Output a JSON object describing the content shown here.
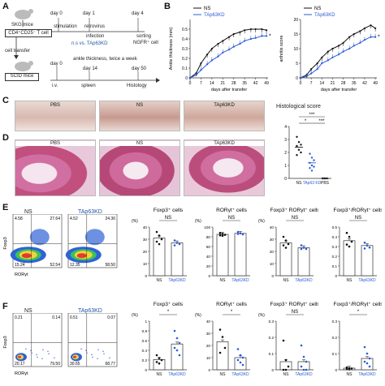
{
  "panelA": {
    "letter": "A",
    "mice": "SKG mice",
    "cells": "CD4⁺CD25⁻ T cell",
    "transfer": "cell transfer",
    "scid": "SCID mice",
    "day0": "day 0",
    "day1": "day 1",
    "day4": "day 4",
    "stimulation": "stimulation",
    "retro": "retrovirus",
    "infection": "infection",
    "nsvs": "n.s vs. TAp63KD",
    "sorting": "sorting",
    "ngfr": "NGFR⁺ cell",
    "ankle": "ankle thickness, twice a week",
    "bday0": "day 0",
    "bday14": "day 14",
    "bday50": "day 50",
    "iv": "i.v.",
    "spleen": "spleen",
    "histology": "Histology"
  },
  "panelB": {
    "letter": "B",
    "legendNS": "NS",
    "legendKD": "TAp63KD",
    "xlabel": "days after transfer",
    "ylabel1": "Ankle thickness (mm)",
    "ylabel2": "arthritis score",
    "star": "*"
  },
  "panelC": {
    "letter": "C",
    "labels": [
      "PBS",
      "NS",
      "TAp63KD"
    ],
    "histTitle": "Histological score"
  },
  "panelD": {
    "letter": "D",
    "labels": [
      "PBS",
      "NS",
      "TAp63KD"
    ],
    "xcats": [
      "NS",
      "TAp63 KD",
      "PBS"
    ],
    "sig": [
      "***",
      "*",
      "***"
    ]
  },
  "panelE": {
    "letter": "E",
    "flowNS": "NS",
    "flowKD": "TAp63KD",
    "yaxis": "Foxp3",
    "xaxis": "RORγt",
    "quadNS": [
      "4.58",
      "27.64",
      "15.24",
      "52.54"
    ],
    "quadKD": [
      "4.52",
      "24.36",
      "12.35",
      "58.50"
    ],
    "titles": [
      "Foxp3⁺ cells",
      "RORγt⁺ cells",
      "Foxp3⁺ RORγt⁺ cells",
      "Foxp3⁺/RORγt⁺ cells"
    ],
    "sig": [
      "NS",
      "NS",
      "NS",
      "NS"
    ],
    "xcats": [
      "NS",
      "TAp63KD"
    ],
    "unit": "(%)"
  },
  "panelF": {
    "letter": "F",
    "flowNS": "NS",
    "flowKD": "TAp63KD",
    "yaxis": "Foxp3",
    "xaxis": "RORγt",
    "quadNS": [
      "0.21",
      "0.14",
      "20.17",
      "79.50"
    ],
    "quadKD": [
      "0.51",
      "0.07",
      "30.65",
      "68.77"
    ],
    "titles": [
      "Foxp3⁺ cells",
      "RORγt⁺ cells",
      "Foxp3⁺ RORγt⁺ cells",
      "Foxp3⁺/RORγt⁺ cells"
    ],
    "sig": [
      "*",
      "*",
      "NS",
      "*"
    ],
    "xcats": [
      "NS",
      "TAp63KD"
    ],
    "unit": "(%)"
  },
  "chart_data": [
    {
      "type": "line",
      "title": "",
      "xlabel": "days after transfer",
      "ylabel": "Ankle thickness (mm)",
      "x": [
        0,
        4,
        7,
        11,
        14,
        18,
        21,
        25,
        28,
        32,
        35,
        39,
        42,
        46,
        49
      ],
      "xticks": [
        0,
        7,
        14,
        21,
        28,
        35,
        42,
        49
      ],
      "ylim": [
        0,
        0.6
      ],
      "yticks": [
        0,
        0.1,
        0.2,
        0.3,
        0.4,
        0.5
      ],
      "series": [
        {
          "name": "NS",
          "values": [
            0,
            0.05,
            0.15,
            0.24,
            0.3,
            0.35,
            0.38,
            0.42,
            0.45,
            0.47,
            0.49,
            0.5,
            0.5,
            0.5,
            0.49
          ]
        },
        {
          "name": "TAp63KD",
          "values": [
            0,
            0.03,
            0.08,
            0.14,
            0.18,
            0.22,
            0.26,
            0.29,
            0.32,
            0.35,
            0.38,
            0.4,
            0.41,
            0.43,
            0.43
          ]
        }
      ]
    },
    {
      "type": "line",
      "title": "",
      "xlabel": "days after transfer",
      "ylabel": "arthritis score",
      "x": [
        0,
        4,
        7,
        11,
        14,
        18,
        21,
        25,
        28,
        32,
        35,
        39,
        42,
        46,
        49
      ],
      "xticks": [
        0,
        7,
        14,
        21,
        28,
        35,
        42,
        49
      ],
      "ylim": [
        0,
        20
      ],
      "yticks": [
        0,
        5,
        10,
        15,
        20
      ],
      "series": [
        {
          "name": "NS",
          "values": [
            0,
            1,
            3,
            5,
            7,
            9,
            10,
            11,
            12,
            14,
            15,
            16,
            17,
            18,
            17
          ]
        },
        {
          "name": "TAp63KD",
          "values": [
            0,
            0.5,
            1.5,
            3,
            5,
            6,
            7,
            8,
            9,
            10,
            11,
            12,
            13,
            14,
            14
          ]
        }
      ]
    },
    {
      "type": "scatter",
      "title": "Histological score",
      "categories": [
        "NS",
        "TAp63 KD",
        "PBS"
      ],
      "ylim": [
        0,
        4
      ],
      "yticks": [
        0,
        1,
        2,
        3,
        4
      ],
      "points": [
        [
          3.2,
          2.8,
          2.6,
          2.5,
          2.2,
          2.0,
          1.8
        ],
        [
          1.9,
          1.6,
          1.4,
          1.2,
          1.0,
          0.9,
          0.8,
          0.6
        ],
        [
          0,
          0,
          0,
          0
        ]
      ],
      "means": [
        2.4,
        1.2,
        0
      ]
    },
    {
      "type": "bar",
      "title": "Foxp3⁺ cells",
      "ylabel": "(%)",
      "categories": [
        "NS",
        "TAp63KD"
      ],
      "ylim": [
        0,
        40
      ],
      "yticks": [
        0,
        10,
        20,
        30,
        40
      ],
      "values": [
        31,
        27
      ],
      "points": [
        [
          36,
          33,
          30,
          28,
          26
        ],
        [
          29,
          27,
          26,
          25
        ]
      ]
    },
    {
      "type": "bar",
      "title": "RORγt⁺ cells",
      "ylabel": "(%)",
      "categories": [
        "NS",
        "TAp63KD"
      ],
      "ylim": [
        0,
        100
      ],
      "yticks": [
        0,
        20,
        40,
        60,
        80,
        100
      ],
      "values": [
        85,
        87
      ],
      "points": [
        [
          88,
          86,
          84,
          83,
          82
        ],
        [
          90,
          87,
          85,
          86
        ]
      ]
    },
    {
      "type": "bar",
      "title": "Foxp3⁺ RORγt⁺ cells",
      "ylabel": "(%)",
      "categories": [
        "NS",
        "TAp63KD"
      ],
      "ylim": [
        0,
        40
      ],
      "yticks": [
        0,
        10,
        20,
        30,
        40
      ],
      "values": [
        27,
        23
      ],
      "points": [
        [
          32,
          29,
          26,
          25,
          23
        ],
        [
          25,
          23,
          22,
          22
        ]
      ]
    },
    {
      "type": "bar",
      "title": "Foxp3⁺/RORγt⁺ cells",
      "categories": [
        "NS",
        "TAp63KD"
      ],
      "ylim": [
        0,
        0.5
      ],
      "yticks": [
        0,
        0.1,
        0.2,
        0.3,
        0.4,
        0.5
      ],
      "values": [
        0.36,
        0.31
      ],
      "points": [
        [
          0.44,
          0.4,
          0.35,
          0.32,
          0.3
        ],
        [
          0.34,
          0.31,
          0.29,
          0.28
        ]
      ]
    },
    {
      "type": "bar",
      "title": "Foxp3⁺ cells",
      "ylabel": "(%)",
      "categories": [
        "NS",
        "TAp63KD"
      ],
      "ylim": [
        0,
        1.0
      ],
      "yticks": [
        0,
        0.2,
        0.4,
        0.6,
        0.8,
        1.0
      ],
      "values": [
        0.21,
        0.53
      ],
      "points": [
        [
          0.3,
          0.24,
          0.2,
          0.16,
          0.13
        ],
        [
          0.8,
          0.65,
          0.55,
          0.45,
          0.4,
          0.3
        ]
      ]
    },
    {
      "type": "bar",
      "title": "RORγt⁺ cells",
      "ylabel": "(%)",
      "categories": [
        "NS",
        "TAp63KD"
      ],
      "ylim": [
        0,
        40
      ],
      "yticks": [
        0,
        10,
        20,
        30,
        40
      ],
      "values": [
        23,
        10
      ],
      "points": [
        [
          33,
          27,
          18,
          14
        ],
        [
          17,
          12,
          10,
          8,
          6,
          4
        ]
      ]
    },
    {
      "type": "bar",
      "title": "Foxp3⁺ RORγt⁺ cells",
      "ylabel": "(%)",
      "categories": [
        "NS",
        "TAp63KD"
      ],
      "ylim": [
        0,
        0.3
      ],
      "yticks": [
        0,
        0.1,
        0.2,
        0.3
      ],
      "values": [
        0.05,
        0.05
      ],
      "points": [
        [
          0.18,
          0.06,
          0.02,
          0.0,
          0.0
        ],
        [
          0.15,
          0.08,
          0.05,
          0.02,
          0.0,
          0.0
        ]
      ]
    },
    {
      "type": "bar",
      "title": "Foxp3⁺/RORγt⁺ cells",
      "categories": [
        "NS",
        "TAp63KD"
      ],
      "ylim": [
        0,
        0.3
      ],
      "yticks": [
        0,
        0.1,
        0.2,
        0.3
      ],
      "values": [
        0.01,
        0.07
      ],
      "points": [
        [
          0.015,
          0.01,
          0.008,
          0.005,
          0.003
        ],
        [
          0.14,
          0.1,
          0.07,
          0.05,
          0.04,
          0.02
        ]
      ]
    }
  ]
}
